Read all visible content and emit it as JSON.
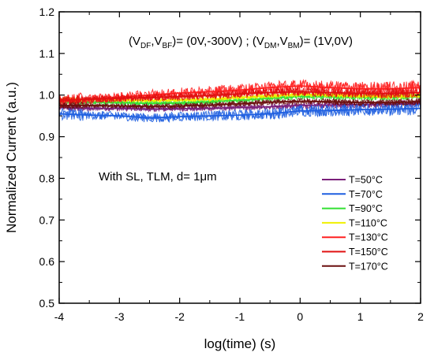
{
  "chart_data": {
    "type": "line",
    "xlabel": "log(time) (s)",
    "ylabel": "Normalized Current (a.u.)",
    "xlim": [
      -4,
      2
    ],
    "ylim": [
      0.5,
      1.2
    ],
    "x_ticks": [
      -4,
      -3,
      -2,
      -1,
      0,
      1,
      2
    ],
    "x_tick_labels": [
      "-4",
      "-3",
      "-2",
      "-1",
      "0",
      "1",
      "2"
    ],
    "y_ticks": [
      0.5,
      0.6,
      0.7,
      0.8,
      0.9,
      1.0,
      1.1,
      1.2
    ],
    "y_tick_labels": [
      "0.5",
      "0.6",
      "0.7",
      "0.8",
      "0.9",
      "1.0",
      "1.1",
      "1.2"
    ],
    "grid": false,
    "legend_position": "right",
    "annotations": {
      "bias": {
        "p1": "(V",
        "s1": "DF",
        "p2": ",V",
        "s2": "BF",
        "p3": ")= (0V,-300V) ; (V",
        "s3": "DM",
        "p4": ",V",
        "s4": "BM",
        "p5": ")= (1V,0V)"
      },
      "sample": "With SL, TLM, d= 1μm"
    },
    "x": [
      -4,
      -3.5,
      -3,
      -2.5,
      -2,
      -1.5,
      -1,
      -0.5,
      0,
      0.5,
      1,
      1.5,
      2
    ],
    "series": [
      {
        "name": "T=50°C",
        "color": "#7a1f7a",
        "noise": 0.008,
        "values": [
          0.97,
          0.968,
          0.968,
          0.966,
          0.967,
          0.968,
          0.97,
          0.972,
          0.975,
          0.976,
          0.977,
          0.978,
          0.98
        ]
      },
      {
        "name": "T=70°C",
        "color": "#1f5fe0",
        "noise": 0.016,
        "values": [
          0.955,
          0.952,
          0.95,
          0.945,
          0.948,
          0.95,
          0.952,
          0.955,
          0.962,
          0.963,
          0.965,
          0.966,
          0.968
        ]
      },
      {
        "name": "T=90°C",
        "color": "#33e033",
        "noise": 0.008,
        "values": [
          0.985,
          0.983,
          0.982,
          0.98,
          0.981,
          0.984,
          0.988,
          0.992,
          0.997,
          0.996,
          0.995,
          0.995,
          0.996
        ]
      },
      {
        "name": "T=110°C",
        "color": "#f0f000",
        "noise": 0.006,
        "values": [
          0.99,
          0.989,
          0.988,
          0.987,
          0.988,
          0.99,
          0.994,
          0.998,
          1.002,
          1.0,
          0.998,
          0.997,
          0.998
        ]
      },
      {
        "name": "T=130°C",
        "color": "#ff2020",
        "noise": 0.018,
        "values": [
          0.985,
          0.99,
          0.995,
          1.0,
          1.005,
          1.008,
          1.012,
          1.018,
          1.022,
          1.018,
          1.015,
          1.015,
          1.018
        ]
      },
      {
        "name": "T=150°C",
        "color": "#e01010",
        "noise": 0.012,
        "values": [
          0.988,
          0.99,
          0.992,
          0.994,
          0.996,
          0.999,
          1.003,
          1.006,
          1.008,
          1.006,
          1.004,
          1.004,
          1.006
        ]
      },
      {
        "name": "T=170°C",
        "color": "#6b0f0f",
        "noise": 0.008,
        "values": [
          0.975,
          0.975,
          0.974,
          0.973,
          0.974,
          0.976,
          0.979,
          0.983,
          0.985,
          0.984,
          0.982,
          0.982,
          0.984
        ]
      }
    ]
  }
}
